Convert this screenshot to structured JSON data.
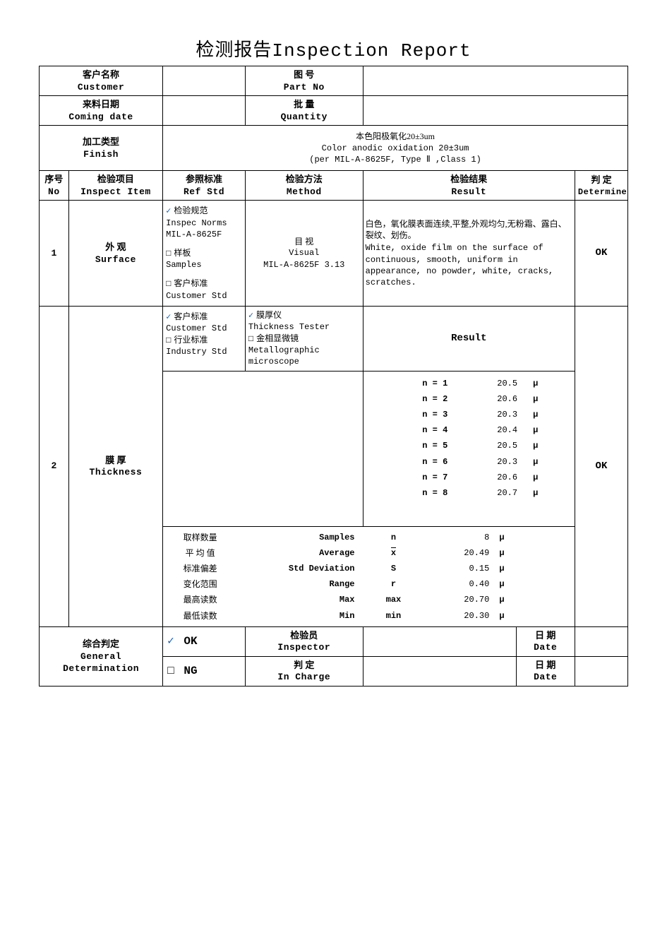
{
  "title_cn": "检测报告",
  "title_en": "Inspection Report",
  "header": {
    "customer_label_cn": "客户名称",
    "customer_label_en": "Customer",
    "customer_value": "",
    "partno_label_cn": "图    号",
    "partno_label_en": "Part No",
    "partno_value": "",
    "date_label_cn": "来料日期",
    "date_label_en": "Coming date",
    "date_value": "",
    "qty_label_cn": "批    量",
    "qty_label_en": "Quantity",
    "qty_value": "",
    "finish_label_cn": "加工类型",
    "finish_label_en": "Finish",
    "finish_line1_cn": "本色阳极氧化20±3um",
    "finish_line2_en": "Color anodic oxidation 20±3um",
    "finish_line3_en": "(per MIL-A-8625F, Type Ⅱ ,Class 1)"
  },
  "cols": {
    "no_cn": "序号",
    "no_en": "No",
    "item_cn": "检验项目",
    "item_en": "Inspect Item",
    "ref_cn": "参照标准",
    "ref_en": "Ref Std",
    "method_cn": "检验方法",
    "method_en": "Method",
    "result_cn": "检验结果",
    "result_en": "Result",
    "det_cn": "判  定",
    "det_en": "Determine"
  },
  "row1": {
    "no": "1",
    "item_cn": "外    观",
    "item_en": "Surface",
    "ref_opt1_checked": true,
    "ref_opt1_cn": "检验规范",
    "ref_opt1_en": "Inspec Norms",
    "ref_opt1_std": "MIL-A-8625F",
    "ref_opt2_checked": false,
    "ref_opt2_cn": "样板",
    "ref_opt2_en": "Samples",
    "ref_opt3_checked": false,
    "ref_opt3_cn": "客户标准",
    "ref_opt3_en": "Customer Std",
    "method_cn": "目    视",
    "method_en": "Visual",
    "method_std": "MIL-A-8625F 3.13",
    "result_cn": "白色，氧化膜表面连续,平整,外观均匀,无粉霜、露白、裂纹、划伤。",
    "result_en": "White, oxide film on the surface of continuous, smooth, uniform in appearance, no powder, white, cracks, scratches.",
    "determine": "OK"
  },
  "row2": {
    "no": "2",
    "item_cn": "膜    厚",
    "item_en": "Thickness",
    "ref_opt1_checked": true,
    "ref_opt1_cn": "客户标准",
    "ref_opt1_en": "Customer Std",
    "ref_opt2_checked": false,
    "ref_opt2_cn": "行业标准",
    "ref_opt2_en": "Industry Std",
    "meth_opt1_checked": true,
    "meth_opt1_cn": "膜厚仪",
    "meth_opt1_en": "Thickness Tester",
    "meth_opt2_checked": false,
    "meth_opt2_cn": "金相显微镜",
    "meth_opt2_en": "Metallographic microscope",
    "result_label": "Result",
    "measurements": [
      {
        "n": "n = 1",
        "v": "20.5",
        "u": "μ"
      },
      {
        "n": "n = 2",
        "v": "20.6",
        "u": "μ"
      },
      {
        "n": "n = 3",
        "v": "20.3",
        "u": "μ"
      },
      {
        "n": "n = 4",
        "v": "20.4",
        "u": "μ"
      },
      {
        "n": "n = 5",
        "v": "20.5",
        "u": "μ"
      },
      {
        "n": "n = 6",
        "v": "20.3",
        "u": "μ"
      },
      {
        "n": "n = 7",
        "v": "20.6",
        "u": "μ"
      },
      {
        "n": "n = 8",
        "v": "20.7",
        "u": "μ"
      }
    ],
    "stats": [
      {
        "cn": "取样数量",
        "en": "Samples",
        "sym": "n",
        "v": "8",
        "u": "μ"
      },
      {
        "cn": "平 均 值",
        "en": "Average",
        "sym": "x̄",
        "v": "20.49",
        "u": "μ"
      },
      {
        "cn": "标准偏差",
        "en": "Std Deviation",
        "sym": "S",
        "v": "0.15",
        "u": "μ"
      },
      {
        "cn": "变化范围",
        "en": "Range",
        "sym": "r",
        "v": "0.40",
        "u": "μ"
      },
      {
        "cn": "最高读数",
        "en": "Max",
        "sym": "max",
        "v": "20.70",
        "u": "μ"
      },
      {
        "cn": "最低读数",
        "en": "Min",
        "sym": "min",
        "v": "20.30",
        "u": "μ"
      }
    ],
    "determine": "OK"
  },
  "footer": {
    "gendet_cn": "综合判定",
    "gendet_en1": "General",
    "gendet_en2": "Determination",
    "ok_checked": true,
    "ok_label": "OK",
    "ng_checked": false,
    "ng_label": "NG",
    "inspector_cn": "检验员",
    "inspector_en": "Inspector",
    "inspector_val": "",
    "incharge_cn": "判  定",
    "incharge_en": "In Charge",
    "incharge_val": "",
    "date_cn": "日 期",
    "date_en": "Date",
    "date1_val": "",
    "date2_val": ""
  },
  "glyphs": {
    "check": "✓",
    "box": "□"
  },
  "colors": {
    "check": "#1a5fb4",
    "border": "#000000",
    "text": "#000000",
    "bg": "#ffffff"
  }
}
